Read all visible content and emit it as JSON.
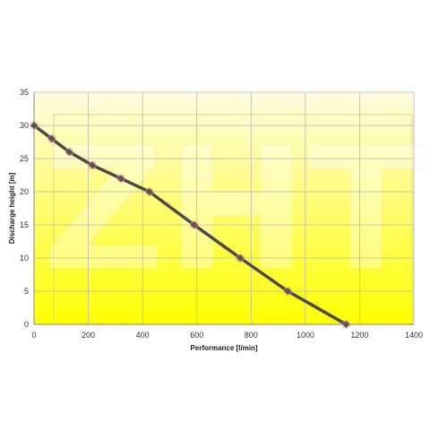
{
  "chart_data": {
    "type": "line",
    "xlabel": "Performance [l/min]",
    "ylabel": "Discharge height [m]",
    "xlim": [
      0,
      1400
    ],
    "ylim": [
      0,
      35
    ],
    "xticks": [
      0,
      200,
      400,
      600,
      800,
      1000,
      1200,
      1400
    ],
    "yticks": [
      0,
      5,
      10,
      15,
      20,
      25,
      30,
      35
    ],
    "grid": true,
    "legend": "none",
    "series": [
      {
        "x": [
          0,
          65,
          130,
          215,
          320,
          425,
          590,
          760,
          935,
          1150
        ],
        "y": [
          30,
          28,
          26,
          24,
          22,
          20,
          15,
          10,
          5,
          0
        ]
      }
    ],
    "colors": {
      "line": "#4a4a4a",
      "marker": "#555555",
      "marker_glow": "#f08080",
      "plot_top": "#fffbe0",
      "plot_bottom": "#ffff00",
      "grid": "#b8b8b8",
      "watermark": "#ffffff",
      "watermark_stroke": "#e6d680"
    },
    "watermark_text": "ZHT"
  }
}
